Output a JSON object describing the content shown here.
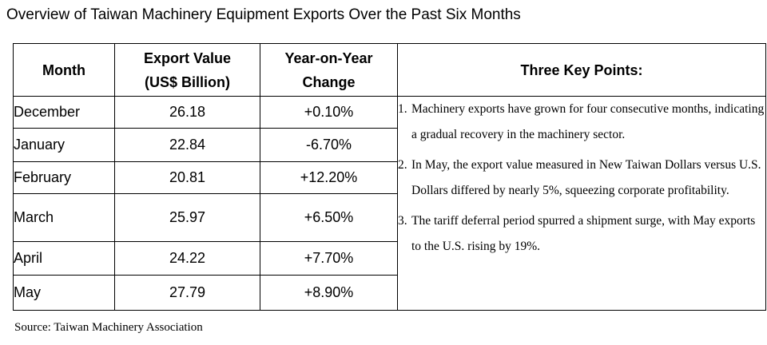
{
  "title": "Overview of Taiwan Machinery Equipment Exports Over the Past Six Months",
  "table": {
    "headers": {
      "month": "Month",
      "value_line1": "Export Value",
      "value_line2": "(US$ Billion)",
      "change_line1": "Year-on-Year",
      "change_line2": "Change",
      "points": "Three Key Points:"
    },
    "rows": [
      {
        "month": "December",
        "value": "26.18",
        "change": "+0.10%"
      },
      {
        "month": "January",
        "value": "22.84",
        "change": "-6.70%"
      },
      {
        "month": "February",
        "value": "20.81",
        "change": "+12.20%"
      },
      {
        "month": "March",
        "value": "25.97",
        "change": "+6.50%"
      },
      {
        "month": "April",
        "value": "24.22",
        "change": "+7.70%"
      },
      {
        "month": "May",
        "value": "27.79",
        "change": "+8.90%"
      }
    ],
    "key_points": [
      {
        "num": "1.",
        "text": "Machinery exports have grown for four consecutive months, indicating a gradual recovery in the machinery sector."
      },
      {
        "num": "2.",
        "text": "In May, the export value measured in New Taiwan Dollars versus U.S. Dollars differed by nearly 5%, squeezing corporate profitability."
      },
      {
        "num": "3.",
        "text": "The tariff deferral period spurred a shipment surge, with May exports to the U.S. rising by 19%."
      }
    ]
  },
  "source": "Source: Taiwan Machinery Association"
}
